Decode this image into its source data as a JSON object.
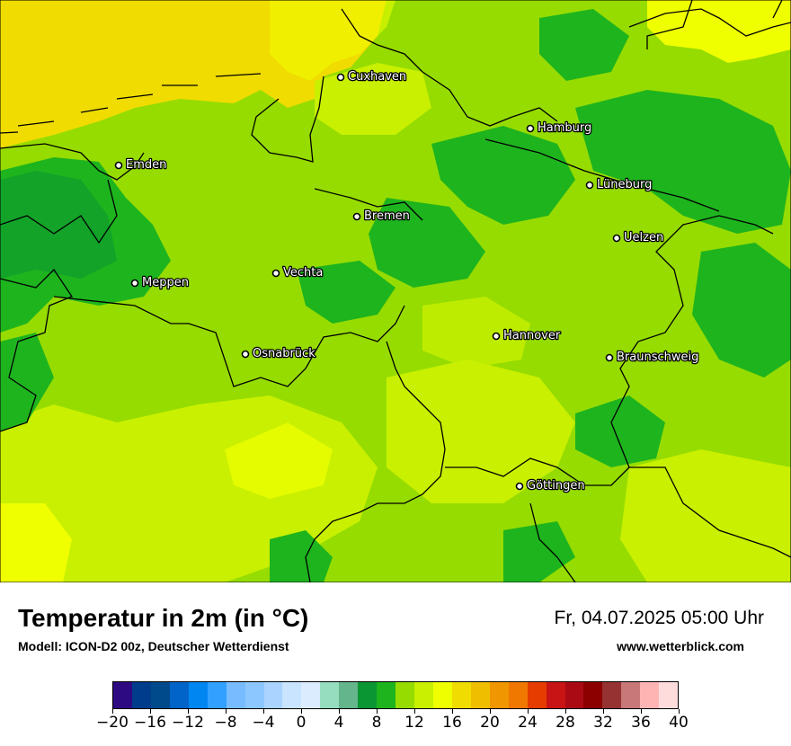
{
  "title": "Temperatur in 2m (in °C)",
  "subtitle": "Modell: ICON-D2 00z, Deutscher Wetterdienst",
  "datetime": "Fr, 04.07.2025 05:00 Uhr",
  "website": "www.wetterblick.com",
  "cities": [
    {
      "name": "Cuxhaven"
    },
    {
      "name": "Hamburg"
    },
    {
      "name": "Emden"
    },
    {
      "name": "Lüneburg"
    },
    {
      "name": "Bremen"
    },
    {
      "name": "Uelzen"
    },
    {
      "name": "Vechta"
    },
    {
      "name": "Meppen"
    },
    {
      "name": "Hannover"
    },
    {
      "name": "Osnabrück"
    },
    {
      "name": "Braunschweig"
    },
    {
      "name": "Göttingen"
    }
  ],
  "legend": {
    "colors": [
      "#2e0a82",
      "#003c8c",
      "#004a8c",
      "#0064c8",
      "#0086f0",
      "#32a0ff",
      "#78bcff",
      "#8cc8ff",
      "#aad4ff",
      "#c8e4ff",
      "#dcecff",
      "#96dcbe",
      "#64b48c",
      "#0a9632",
      "#1eb41e",
      "#96dc00",
      "#c8f000",
      "#f0ff00",
      "#f0dc00",
      "#f0be00",
      "#f09600",
      "#f07800",
      "#e63c00",
      "#c81414",
      "#aa0a14",
      "#8c0000",
      "#963232",
      "#c87878",
      "#ffb4b4",
      "#ffdcdc"
    ],
    "ticks": [
      "−20",
      "−16",
      "−12",
      "−8",
      "−4",
      "0",
      "4",
      "8",
      "12",
      "16",
      "20",
      "24",
      "28",
      "32",
      "36",
      "40"
    ],
    "min": -20,
    "max": 40
  }
}
